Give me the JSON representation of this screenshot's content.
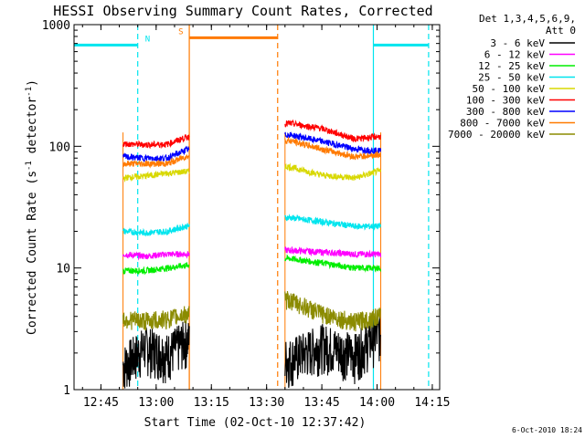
{
  "chart_data": {
    "type": "line",
    "title": "HESSI Observing Summary Count Rates, Corrected",
    "xlabel": "Start Time (02-Oct-10 12:37:42)",
    "ylabel_main": "Corrected Count Rate (s",
    "ylabel_sup1": "-1",
    "ylabel_mid": " detector",
    "ylabel_sup2": "-1",
    "ylabel_end": ")",
    "yscale": "log",
    "xlim": [
      "12:37:42",
      "14:17"
    ],
    "ylim": [
      1,
      1000
    ],
    "x_ticks": [
      "12:45",
      "13:00",
      "13:15",
      "13:30",
      "13:45",
      "14:00",
      "14:15"
    ],
    "y_ticks": [
      "1",
      "10",
      "100",
      "1000"
    ],
    "legend_header": [
      "Det 1,3,4,5,6,9,",
      "Att 0"
    ],
    "timestamp": "6-Oct-2010 18:24",
    "flags": [
      {
        "label": "N",
        "color": "#00e5ee",
        "segments": [
          [
            "12:37:42",
            "12:55"
          ],
          [
            "13:59",
            "14:14"
          ]
        ],
        "level": 680
      },
      {
        "label": "S",
        "color": "#ff7a00",
        "segments": [
          [
            "13:09",
            "13:33"
          ]
        ],
        "level": 780
      }
    ],
    "vertical_lines": [
      {
        "x": "12:55",
        "color": "#00e5ee",
        "style": "dashed"
      },
      {
        "x": "13:09",
        "color": "#ff7a00",
        "style": "solid"
      },
      {
        "x": "13:33",
        "color": "#ff7a00",
        "style": "dashed"
      },
      {
        "x": "13:59",
        "color": "#00e5ee",
        "style": "solid"
      },
      {
        "x": "14:14",
        "color": "#00e5ee",
        "style": "dashed"
      }
    ],
    "data_intervals": [
      [
        "12:51",
        "13:09"
      ],
      [
        "13:35",
        "14:01"
      ]
    ],
    "series": [
      {
        "name": "3 - 6 keV",
        "color": "#000000",
        "values": [
          1.6,
          2.3,
          2.0,
          2.6,
          1.8,
          2.4,
          2.0,
          2.9
        ]
      },
      {
        "name": "6 - 12 keV",
        "color": "#ff00ff",
        "values": [
          13,
          12.5,
          13,
          13,
          14,
          13.5,
          13,
          13
        ]
      },
      {
        "name": "12 - 25 keV",
        "color": "#00ee00",
        "values": [
          9.5,
          9.5,
          10,
          10.5,
          12,
          11,
          10,
          10
        ]
      },
      {
        "name": "25 - 50 keV",
        "color": "#00e5ee",
        "values": [
          20,
          19.5,
          20,
          22,
          26,
          24,
          22,
          22
        ]
      },
      {
        "name": "50 - 100 keV",
        "color": "#d8d800",
        "values": [
          55,
          57,
          60,
          62,
          68,
          58,
          55,
          62
        ]
      },
      {
        "name": "100 - 300 keV",
        "color": "#ff0000",
        "values": [
          105,
          103,
          104,
          118,
          155,
          140,
          115,
          120
        ]
      },
      {
        "name": "300 - 800 keV",
        "color": "#0000ff",
        "values": [
          82,
          80,
          80,
          93,
          125,
          110,
          95,
          92
        ]
      },
      {
        "name": "800 - 7000 keV",
        "color": "#ff7a00",
        "values": [
          72,
          72,
          72,
          82,
          112,
          95,
          82,
          85
        ]
      },
      {
        "name": "7000 - 20000 keV",
        "color": "#8b8b00",
        "values": [
          3.8,
          3.7,
          3.8,
          4.2,
          5.5,
          4.2,
          3.6,
          4.0
        ]
      }
    ],
    "series_x": [
      "12:51",
      "12:57",
      "13:03",
      "13:08",
      "13:36",
      "13:45",
      "13:54",
      "14:00"
    ]
  }
}
